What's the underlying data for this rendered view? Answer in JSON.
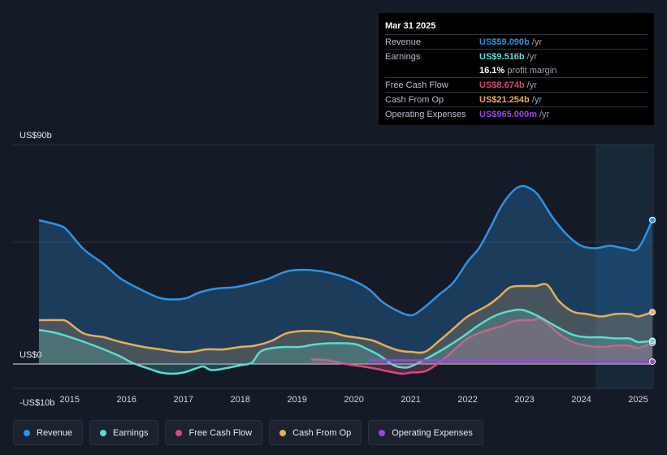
{
  "tooltip": {
    "date": "Mar 31 2025",
    "rows": [
      {
        "label": "Revenue",
        "value": "US$59.090b",
        "unit": "/yr",
        "color": "#2e93e6"
      },
      {
        "label": "Earnings",
        "value": "US$9.516b",
        "unit": "/yr",
        "color": "#5cdbd0"
      },
      {
        "label": "",
        "value": "16.1%",
        "unit": "profit margin",
        "color": "#ffffff"
      },
      {
        "label": "Free Cash Flow",
        "value": "US$8.674b",
        "unit": "/yr",
        "color": "#d9487c"
      },
      {
        "label": "Cash From Op",
        "value": "US$21.254b",
        "unit": "/yr",
        "color": "#e8ad5a"
      },
      {
        "label": "Operating Expenses",
        "value": "US$965.000m",
        "unit": "/yr",
        "color": "#9b45e4"
      }
    ]
  },
  "legend": [
    {
      "label": "Revenue",
      "color": "#2e93e6"
    },
    {
      "label": "Earnings",
      "color": "#5cdbd0"
    },
    {
      "label": "Free Cash Flow",
      "color": "#d9487c"
    },
    {
      "label": "Cash From Op",
      "color": "#e8ad5a"
    },
    {
      "label": "Operating Expenses",
      "color": "#9b45e4"
    }
  ],
  "chart_data": {
    "type": "area",
    "title": "",
    "xlabel": "",
    "ylabel": "",
    "x_ticks": [
      "2015",
      "2016",
      "2017",
      "2018",
      "2019",
      "2020",
      "2021",
      "2022",
      "2023",
      "2024",
      "2025"
    ],
    "y_ticks": [
      "US$90b",
      "US$0",
      "-US$10b"
    ],
    "ylim": [
      -10,
      90
    ],
    "xlim": [
      2014.46,
      2025.25
    ],
    "highlight_range": [
      2024.25,
      2025.25
    ],
    "series": [
      {
        "name": "Revenue",
        "color": "#2e93e6",
        "x": [
          2014.46,
          2014.8,
          2014.95,
          2015.25,
          2015.6,
          2015.9,
          2016.3,
          2016.6,
          2016.85,
          2017.05,
          2017.3,
          2017.6,
          2017.9,
          2018.2,
          2018.5,
          2018.75,
          2018.95,
          2019.25,
          2019.55,
          2019.85,
          2020.1,
          2020.3,
          2020.5,
          2020.75,
          2021.0,
          2021.2,
          2021.5,
          2021.75,
          2022.0,
          2022.2,
          2022.4,
          2022.6,
          2022.8,
          2022.95,
          2023.1,
          2023.25,
          2023.5,
          2023.75,
          2024.0,
          2024.25,
          2024.5,
          2024.75,
          2025.0,
          2025.25
        ],
        "values": [
          59,
          57,
          55,
          47,
          41,
          35,
          30,
          27,
          26.5,
          27,
          29.5,
          31,
          31.5,
          33,
          35,
          37.5,
          38.5,
          38.5,
          37.5,
          35.5,
          33,
          30,
          25.5,
          22,
          20,
          22.5,
          28.5,
          33.5,
          42,
          47.5,
          56,
          65,
          71,
          73,
          72,
          69,
          60,
          53,
          48.5,
          47.5,
          48.5,
          47.5,
          47.5,
          59.09
        ]
      },
      {
        "name": "Cash From Op",
        "color": "#e8ad5a",
        "x": [
          2014.46,
          2014.8,
          2014.95,
          2015.25,
          2015.6,
          2015.9,
          2016.3,
          2016.6,
          2016.9,
          2017.15,
          2017.4,
          2017.7,
          2018.0,
          2018.25,
          2018.55,
          2018.8,
          2019.05,
          2019.3,
          2019.6,
          2019.85,
          2020.15,
          2020.35,
          2020.55,
          2020.8,
          2021.0,
          2021.25,
          2021.5,
          2021.75,
          2022.0,
          2022.35,
          2022.55,
          2022.75,
          2023.0,
          2023.2,
          2023.4,
          2023.6,
          2023.85,
          2024.1,
          2024.35,
          2024.6,
          2024.85,
          2025.0,
          2025.25
        ],
        "values": [
          18,
          18,
          17.5,
          12.5,
          11,
          9,
          7,
          6,
          5,
          5,
          6,
          6,
          7,
          7.5,
          9.5,
          12.5,
          13.5,
          13.5,
          13,
          11.5,
          10.5,
          9.5,
          7.5,
          5.5,
          5,
          5,
          9.5,
          14.5,
          19.5,
          24,
          27.5,
          31.5,
          32,
          32,
          32.5,
          26,
          21.5,
          20.5,
          19.5,
          20.5,
          20.5,
          19.5,
          21.254
        ]
      },
      {
        "name": "Free Cash Flow",
        "color": "#d9487c",
        "x": [
          2019.25,
          2019.55,
          2019.85,
          2020.15,
          2020.4,
          2020.6,
          2020.85,
          2021.0,
          2021.25,
          2021.5,
          2021.75,
          2022.0,
          2022.3,
          2022.6,
          2022.8,
          2023.0,
          2023.15,
          2023.3,
          2023.6,
          2023.85,
          2024.1,
          2024.35,
          2024.6,
          2024.85,
          2025.0,
          2025.25
        ],
        "values": [
          2,
          1.5,
          0,
          -1,
          -2,
          -3,
          -4,
          -3.5,
          -3,
          0.5,
          5.5,
          10.5,
          13.5,
          15.5,
          17.5,
          18,
          18,
          18.5,
          12.5,
          9,
          7.5,
          7,
          7.5,
          7.5,
          6.5,
          8.674
        ]
      },
      {
        "name": "Earnings",
        "color": "#5cdbd0",
        "x": [
          2014.46,
          2014.8,
          2015.2,
          2015.6,
          2015.9,
          2016.1,
          2016.4,
          2016.6,
          2016.8,
          2017.0,
          2017.2,
          2017.35,
          2017.5,
          2017.8,
          2018.0,
          2018.2,
          2018.35,
          2018.55,
          2018.8,
          2019.05,
          2019.3,
          2019.55,
          2019.85,
          2020.05,
          2020.2,
          2020.45,
          2020.7,
          2020.9,
          2021.05,
          2021.3,
          2021.6,
          2021.9,
          2022.2,
          2022.5,
          2022.8,
          2023.0,
          2023.25,
          2023.55,
          2023.85,
          2024.1,
          2024.35,
          2024.6,
          2024.85,
          2025.0,
          2025.25
        ],
        "values": [
          14,
          12.5,
          9.5,
          6,
          3,
          0.5,
          -2,
          -3.5,
          -4,
          -3.5,
          -2,
          -1,
          -2.5,
          -1.5,
          -0.5,
          0.5,
          5,
          6.5,
          7,
          7,
          8,
          8.5,
          8.5,
          8,
          6.5,
          3.5,
          -0.5,
          -1.5,
          -0.5,
          2.5,
          6.5,
          11,
          16,
          20,
          22,
          22,
          19.5,
          15.5,
          12,
          11,
          11,
          10.5,
          10.5,
          9,
          9.516
        ]
      },
      {
        "name": "Operating Expenses",
        "color": "#9b45e4",
        "x": [
          2020.25,
          2020.6,
          2021.0,
          2021.5,
          2022.0,
          2022.5,
          2023.0,
          2023.5,
          2024.0,
          2024.5,
          2025.0,
          2025.25
        ],
        "values": [
          1.5,
          1.5,
          1.5,
          1.5,
          1.5,
          1.5,
          1.2,
          1.2,
          1.0,
          1.0,
          1.0,
          0.965
        ]
      }
    ]
  }
}
